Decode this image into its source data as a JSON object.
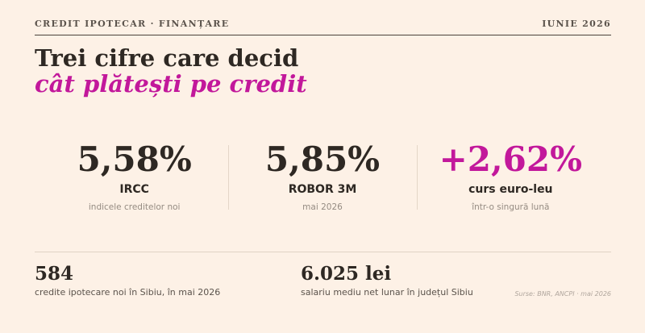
{
  "header": {
    "kicker": "CREDIT IPOTECAR · FINANȚARE",
    "date": "IUNIE 2026"
  },
  "title": {
    "line1": "Trei cifre care decid",
    "line2": "cât plătești pe credit"
  },
  "stats": [
    {
      "value": "5,58%",
      "label": "IRCC",
      "sub": "indicele creditelor noi"
    },
    {
      "value": "5,85%",
      "label": "ROBOR 3M",
      "sub": "mai 2026"
    },
    {
      "value": "+2,62%",
      "label": "curs euro-leu",
      "sub": "într-o singură lună"
    }
  ],
  "bottom": [
    {
      "value": "584",
      "desc": "credite ipotecare noi în Sibiu, în mai 2026"
    },
    {
      "value": "6.025 lei",
      "desc": "salariu mediu net lunar în județul Sibiu"
    }
  ],
  "sources": "Surse: BNR, ANCPI · mai 2026",
  "colors": {
    "background": "#fdf1e6",
    "text": "#2e2823",
    "accent": "#c2189b",
    "muted": "#958b82"
  }
}
